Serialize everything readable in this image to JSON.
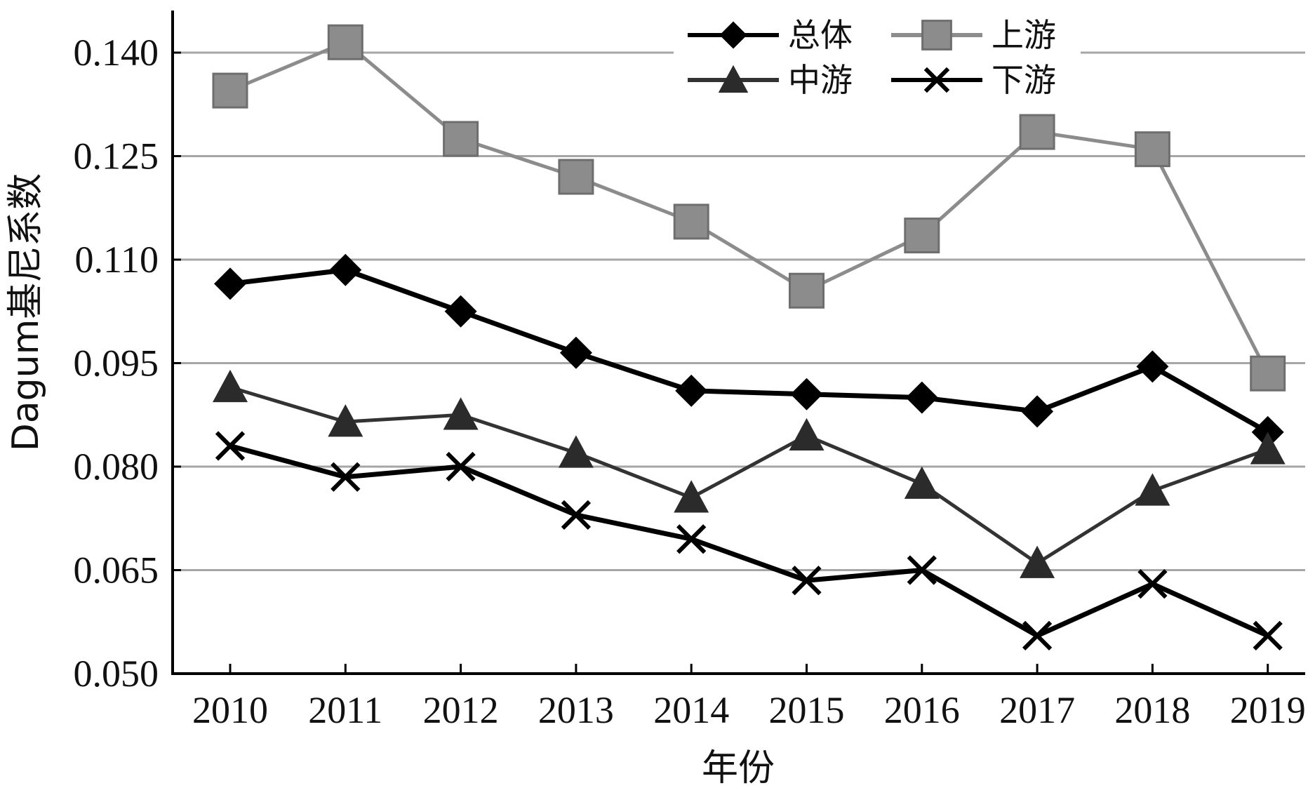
{
  "chart_data": {
    "type": "line",
    "title": "",
    "xlabel": "年份",
    "ylabel": "Dagum基尼系数",
    "categories": [
      "2010",
      "2011",
      "2012",
      "2013",
      "2014",
      "2015",
      "2016",
      "2017",
      "2018",
      "2019"
    ],
    "ylim": [
      0.05,
      0.145
    ],
    "yticks": [
      "0.050",
      "0.065",
      "0.080",
      "0.095",
      "0.110",
      "0.125",
      "0.140"
    ],
    "grid": "horizontal",
    "legend_position": "top-right",
    "series": [
      {
        "name": "总体",
        "marker": "diamond",
        "color": "#000000",
        "values": [
          0.1065,
          0.1085,
          0.1025,
          0.0965,
          0.091,
          0.0905,
          0.09,
          0.088,
          0.0945,
          0.085
        ]
      },
      {
        "name": "上游",
        "marker": "square",
        "color": "#808080",
        "values": [
          0.1345,
          0.1415,
          0.1275,
          0.122,
          0.1155,
          0.1055,
          0.1135,
          0.1285,
          0.126,
          0.0935
        ]
      },
      {
        "name": "中游",
        "marker": "triangle",
        "color": "#2b2b2b",
        "values": [
          0.0915,
          0.0865,
          0.0875,
          0.082,
          0.0755,
          0.0845,
          0.0775,
          0.066,
          0.0765,
          0.0825
        ]
      },
      {
        "name": "下游",
        "marker": "cross",
        "color": "#000000",
        "values": [
          0.083,
          0.0785,
          0.08,
          0.073,
          0.0695,
          0.0635,
          0.065,
          0.0555,
          0.063,
          0.0555
        ]
      }
    ]
  }
}
